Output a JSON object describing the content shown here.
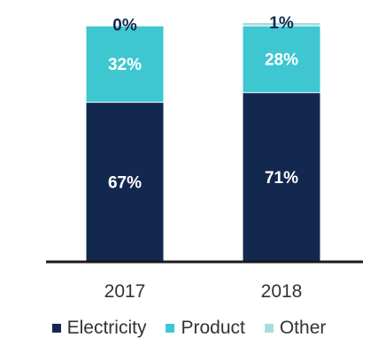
{
  "chart_data": {
    "type": "bar",
    "stacked": true,
    "percent": true,
    "categories": [
      "2017",
      "2018"
    ],
    "series": [
      {
        "name": "Electricity",
        "values": [
          67,
          71
        ],
        "labels": [
          "67%",
          "71%"
        ],
        "color": "#13284f",
        "label_color": "#ffffff"
      },
      {
        "name": "Product",
        "values": [
          32,
          28
        ],
        "labels": [
          "32%",
          "28%"
        ],
        "color": "#3ec7d1",
        "label_color": "#ffffff"
      },
      {
        "name": "Other",
        "values": [
          0,
          1
        ],
        "labels": [
          "0%",
          "1%"
        ],
        "color": "#a9dcde",
        "label_color": "#13284f"
      }
    ],
    "ylim": [
      0,
      100
    ],
    "grid": false,
    "legend_position": "bottom"
  }
}
